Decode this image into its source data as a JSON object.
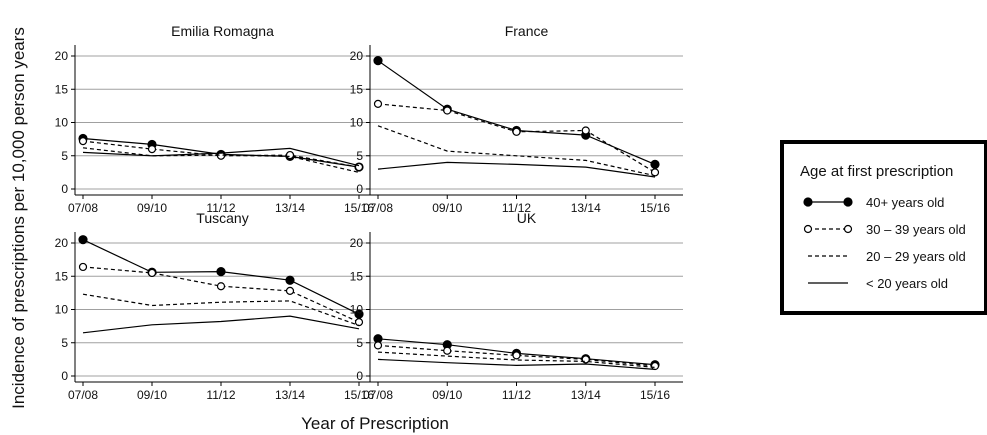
{
  "figure": {
    "ylabel": "Incidence of prescriptions per 10,000 person years",
    "xlabel": "Year of Prescription",
    "legend_title": "Age at first prescription"
  },
  "legend_items": [
    {
      "label": "40+ years old",
      "style": "solid",
      "marker": "filled"
    },
    {
      "label": "30 – 39 years old",
      "style": "dashed",
      "marker": "hollow"
    },
    {
      "label": "20 – 29 years old",
      "style": "dashed",
      "marker": "none"
    },
    {
      "label": "< 20 years old",
      "style": "solid",
      "marker": "none"
    }
  ],
  "chart_data": [
    {
      "type": "line",
      "title": "Emilia Romagna",
      "categories": [
        "07/08",
        "09/10",
        "11/12",
        "13/14",
        "15/16"
      ],
      "ylim": [
        0,
        20
      ],
      "yticks": [
        0,
        5,
        10,
        15,
        20
      ],
      "grid": true,
      "series": [
        {
          "name": "40+ years old",
          "values": [
            7.6,
            6.7,
            5.2,
            4.9,
            3.3
          ]
        },
        {
          "name": "30 – 39 years old",
          "values": [
            7.2,
            6.0,
            5.0,
            5.1,
            3.3
          ]
        },
        {
          "name": "20 – 29 years old",
          "values": [
            6.2,
            5.0,
            5.1,
            4.9,
            2.5
          ]
        },
        {
          "name": "< 20 years old",
          "values": [
            5.5,
            5.0,
            5.4,
            6.1,
            3.5
          ]
        }
      ]
    },
    {
      "type": "line",
      "title": "France",
      "categories": [
        "07/08",
        "09/10",
        "11/12",
        "13/14",
        "15/16"
      ],
      "ylim": [
        0,
        20
      ],
      "yticks": [
        0,
        5,
        10,
        15,
        20
      ],
      "grid": true,
      "series": [
        {
          "name": "40+ years old",
          "values": [
            19.3,
            12.0,
            8.8,
            8.1,
            3.7
          ]
        },
        {
          "name": "30 – 39 years old",
          "values": [
            12.8,
            11.8,
            8.6,
            8.8,
            2.5
          ]
        },
        {
          "name": "20 – 29 years old",
          "values": [
            9.5,
            5.7,
            5.0,
            4.3,
            2.0
          ]
        },
        {
          "name": "< 20 years old",
          "values": [
            3.0,
            4.0,
            3.7,
            3.3,
            1.8
          ]
        }
      ]
    },
    {
      "type": "line",
      "title": "Tuscany",
      "categories": [
        "07/08",
        "09/10",
        "11/12",
        "13/14",
        "15/16"
      ],
      "ylim": [
        0,
        20
      ],
      "yticks": [
        0,
        5,
        10,
        15,
        20
      ],
      "grid": true,
      "series": [
        {
          "name": "40+ years old",
          "values": [
            20.5,
            15.6,
            15.7,
            14.4,
            9.3
          ]
        },
        {
          "name": "30 – 39 years old",
          "values": [
            16.4,
            15.5,
            13.5,
            12.8,
            8.1
          ]
        },
        {
          "name": "20 – 29 years old",
          "values": [
            12.3,
            10.6,
            11.1,
            11.3,
            7.6
          ]
        },
        {
          "name": "< 20 years old",
          "values": [
            6.5,
            7.7,
            8.2,
            9.0,
            7.1
          ]
        }
      ]
    },
    {
      "type": "line",
      "title": "UK",
      "categories": [
        "07/08",
        "09/10",
        "11/12",
        "13/14",
        "15/16"
      ],
      "ylim": [
        0,
        20
      ],
      "yticks": [
        0,
        5,
        10,
        15,
        20
      ],
      "grid": true,
      "series": [
        {
          "name": "40+ years old",
          "values": [
            5.6,
            4.7,
            3.4,
            2.6,
            1.7
          ]
        },
        {
          "name": "30 – 39 years old",
          "values": [
            4.6,
            3.8,
            3.1,
            2.5,
            1.5
          ]
        },
        {
          "name": "20 – 29 years old",
          "values": [
            3.6,
            3.0,
            2.4,
            2.2,
            1.3
          ]
        },
        {
          "name": "< 20 years old",
          "values": [
            2.5,
            2.0,
            1.6,
            1.8,
            1.0
          ]
        }
      ]
    }
  ]
}
